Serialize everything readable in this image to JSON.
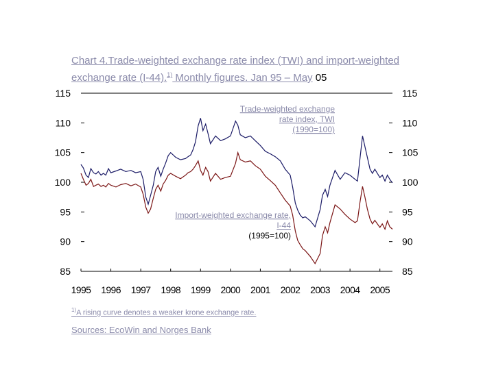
{
  "title": {
    "prefix": "Chart 4.",
    "main": "Trade-weighted exchange rate index (TWI) and import-weighted exchange rate (I-44).",
    "footnote_ref": "1)",
    "suffix": " Monthly figures. Jan 95 – May",
    "tail": " 05"
  },
  "footnote": {
    "ref": "1)",
    "text": "A rising curve denotes a weaker krone exchange rate."
  },
  "sources": "Sources: EcoWin and Norges Bank",
  "colors": {
    "twi": "#1a1a66",
    "i44": "#7a1414",
    "axis": "#000000",
    "annotation": "#8a8aaa"
  },
  "chart_data": {
    "type": "line",
    "title": "Trade-weighted exchange rate index (TWI) and import-weighted exchange rate (I-44)",
    "ylim": [
      85,
      115
    ],
    "y_ticks": [
      "85",
      "90",
      "95",
      "100",
      "105",
      "110",
      "115"
    ],
    "x_ticks": [
      "1995",
      "1996",
      "1997",
      "1998",
      "1999",
      "2000",
      "2001",
      "2002",
      "2003",
      "2004",
      "2005"
    ],
    "x_range": [
      1995.0,
      2005.42
    ],
    "grid": false,
    "annotations": [
      {
        "lines": [
          "Trade-weighted exchange",
          "rate index, TWI",
          "(1990=100)"
        ],
        "series": "TWI"
      },
      {
        "lines": [
          "Import-weighted exchange rate,",
          "I-44",
          "(1995=100)"
        ],
        "series": "I-44"
      }
    ],
    "series": [
      {
        "name": "TWI",
        "x": [
          1995.0,
          1995.08,
          1995.17,
          1995.25,
          1995.33,
          1995.42,
          1995.5,
          1995.58,
          1995.67,
          1995.75,
          1995.83,
          1995.92,
          1996.0,
          1996.17,
          1996.33,
          1996.5,
          1996.67,
          1996.83,
          1997.0,
          1997.08,
          1997.17,
          1997.25,
          1997.33,
          1997.42,
          1997.5,
          1997.58,
          1997.67,
          1997.75,
          1997.83,
          1997.92,
          1998.0,
          1998.17,
          1998.33,
          1998.5,
          1998.58,
          1998.67,
          1998.75,
          1998.83,
          1998.92,
          1999.0,
          1999.08,
          1999.17,
          1999.25,
          1999.33,
          1999.5,
          1999.67,
          1999.83,
          2000.0,
          2000.17,
          2000.25,
          2000.33,
          2000.5,
          2000.67,
          2000.83,
          2001.0,
          2001.17,
          2001.33,
          2001.5,
          2001.67,
          2001.83,
          2002.0,
          2002.08,
          2002.17,
          2002.25,
          2002.33,
          2002.42,
          2002.5,
          2002.67,
          2002.83,
          2003.0,
          2003.08,
          2003.17,
          2003.25,
          2003.33,
          2003.5,
          2003.67,
          2003.83,
          2004.0,
          2004.17,
          2004.25,
          2004.33,
          2004.42,
          2004.5,
          2004.58,
          2004.67,
          2004.75,
          2004.83,
          2005.0,
          2005.08,
          2005.17,
          2005.25,
          2005.33,
          2005.42
        ],
        "values": [
          103.0,
          102.4,
          101.2,
          100.8,
          102.3,
          101.6,
          101.4,
          101.8,
          101.2,
          101.5,
          101.2,
          102.3,
          101.6,
          101.9,
          102.2,
          101.8,
          102.0,
          101.6,
          101.8,
          100.5,
          97.5,
          96.3,
          97.8,
          99.5,
          101.8,
          102.5,
          101.0,
          102.2,
          103.2,
          104.5,
          105.0,
          104.2,
          103.8,
          104.0,
          104.3,
          104.6,
          105.5,
          106.8,
          109.5,
          110.8,
          108.7,
          109.8,
          108.2,
          106.5,
          107.8,
          107.0,
          107.3,
          107.8,
          110.3,
          109.6,
          108.0,
          107.5,
          107.8,
          107.0,
          106.2,
          105.2,
          104.8,
          104.3,
          103.6,
          102.2,
          101.2,
          99.2,
          96.5,
          95.3,
          94.5,
          94.0,
          94.2,
          93.5,
          92.5,
          95.4,
          97.8,
          98.8,
          97.6,
          99.5,
          102.0,
          100.5,
          101.6,
          101.2,
          100.5,
          100.2,
          103.8,
          107.8,
          106.0,
          104.2,
          102.2,
          101.5,
          102.2,
          100.8,
          101.2,
          100.2,
          101.2,
          100.5,
          99.9
        ]
      },
      {
        "name": "I-44",
        "x": [
          1995.0,
          1995.08,
          1995.17,
          1995.25,
          1995.33,
          1995.42,
          1995.5,
          1995.58,
          1995.67,
          1995.75,
          1995.83,
          1995.92,
          1996.0,
          1996.17,
          1996.33,
          1996.5,
          1996.67,
          1996.83,
          1997.0,
          1997.08,
          1997.17,
          1997.25,
          1997.33,
          1997.42,
          1997.5,
          1997.58,
          1997.67,
          1997.75,
          1997.83,
          1997.92,
          1998.0,
          1998.17,
          1998.33,
          1998.5,
          1998.58,
          1998.67,
          1998.75,
          1998.83,
          1998.92,
          1999.0,
          1999.08,
          1999.17,
          1999.25,
          1999.33,
          1999.5,
          1999.67,
          1999.83,
          2000.0,
          2000.17,
          2000.25,
          2000.33,
          2000.5,
          2000.67,
          2000.83,
          2001.0,
          2001.17,
          2001.33,
          2001.5,
          2001.67,
          2001.83,
          2002.0,
          2002.08,
          2002.17,
          2002.25,
          2002.33,
          2002.42,
          2002.5,
          2002.67,
          2002.83,
          2003.0,
          2003.08,
          2003.17,
          2003.25,
          2003.33,
          2003.5,
          2003.67,
          2003.83,
          2004.0,
          2004.17,
          2004.25,
          2004.33,
          2004.42,
          2004.5,
          2004.58,
          2004.67,
          2004.75,
          2004.83,
          2005.0,
          2005.08,
          2005.17,
          2005.25,
          2005.33,
          2005.42
        ],
        "values": [
          101.5,
          100.5,
          99.5,
          99.8,
          100.5,
          99.3,
          99.5,
          99.7,
          99.3,
          99.5,
          99.2,
          99.8,
          99.5,
          99.2,
          99.6,
          99.8,
          99.4,
          99.7,
          99.2,
          98.0,
          95.8,
          94.8,
          95.5,
          97.3,
          98.8,
          99.5,
          98.5,
          99.7,
          100.3,
          101.2,
          101.5,
          101.0,
          100.6,
          101.2,
          101.6,
          101.8,
          102.2,
          102.8,
          103.6,
          102.0,
          101.2,
          102.5,
          101.8,
          100.2,
          101.5,
          100.5,
          100.8,
          101.0,
          103.2,
          105.0,
          103.8,
          103.4,
          103.6,
          102.8,
          102.2,
          101.0,
          100.3,
          99.5,
          98.2,
          97.0,
          96.0,
          94.5,
          91.8,
          90.2,
          89.5,
          88.8,
          88.5,
          87.5,
          86.3,
          88.0,
          91.0,
          92.5,
          91.5,
          93.2,
          96.2,
          95.5,
          94.6,
          93.8,
          93.2,
          93.5,
          96.5,
          99.3,
          97.5,
          95.5,
          93.8,
          93.0,
          93.6,
          92.4,
          93.0,
          92.1,
          93.5,
          92.5,
          92.1
        ]
      }
    ]
  }
}
